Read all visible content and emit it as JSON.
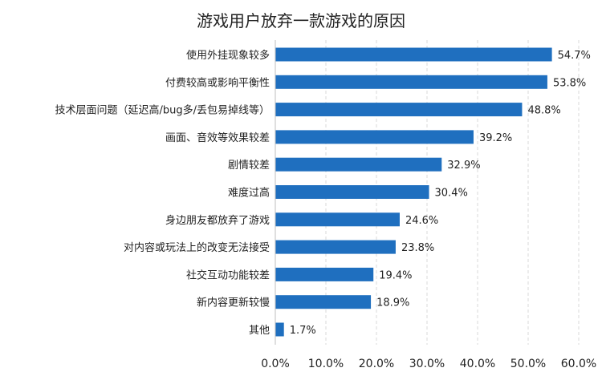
{
  "chart_data": {
    "type": "bar",
    "orientation": "horizontal",
    "title": "游戏用户放弃一款游戏的原因",
    "categories": [
      "使用外挂现象较多",
      "付费较高或影响平衡性",
      "技术层面问题（延迟高/bug多/丢包易掉线等）",
      "画面、音效等效果较差",
      "剧情较差",
      "难度过高",
      "身边朋友都放弃了游戏",
      "对内容或玩法上的改变无法接受",
      "社交互动功能较差",
      "新内容更新较慢",
      "其他"
    ],
    "values": [
      54.7,
      53.8,
      48.8,
      39.2,
      32.9,
      30.4,
      24.6,
      23.8,
      19.4,
      18.9,
      1.7
    ],
    "value_labels": [
      "54.7%",
      "53.8%",
      "48.8%",
      "39.2%",
      "32.9%",
      "30.4%",
      "24.6%",
      "23.8%",
      "19.4%",
      "18.9%",
      "1.7%"
    ],
    "xlim": [
      0,
      60
    ],
    "xticks": [
      0,
      10,
      20,
      30,
      40,
      50,
      60
    ],
    "xtick_labels": [
      "0.0%",
      "10.0%",
      "20.0%",
      "30.0%",
      "40.0%",
      "50.0%",
      "60.0%"
    ],
    "xlabel": "",
    "ylabel": "",
    "grid": "vertical dashed",
    "legend": "none",
    "bar_color": "#1F6FBF",
    "grid_color": "#D9D9D9"
  }
}
